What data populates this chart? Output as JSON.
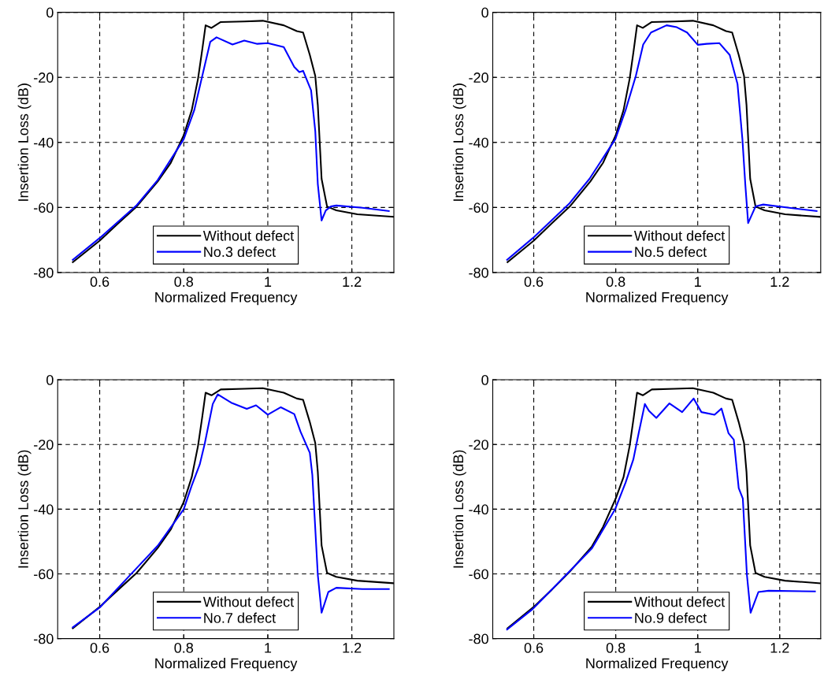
{
  "chart_data": [
    {
      "type": "line",
      "xlabel": "Normalized Frequency",
      "ylabel": "Insertion Loss (dB)",
      "xlim": [
        0.5,
        1.3
      ],
      "ylim": [
        -80,
        0
      ],
      "xticks": [
        0.6,
        0.8,
        1,
        1.2
      ],
      "yticks": [
        -80,
        -60,
        -40,
        -20,
        0
      ],
      "grid": true,
      "legend": "bottom",
      "series": [
        {
          "name": "Without defect",
          "color": "#000000",
          "x": [
            0.536,
            0.6,
            0.644,
            0.688,
            0.738,
            0.769,
            0.8,
            0.819,
            0.834,
            0.844,
            0.852,
            0.866,
            0.888,
            0.944,
            0.988,
            1.038,
            1.069,
            1.084,
            1.1,
            1.113,
            1.119,
            1.128,
            1.141,
            1.163,
            1.213,
            1.3
          ],
          "values": [
            -76.8,
            -70.2,
            -64.9,
            -59.7,
            -52,
            -46.3,
            -37.8,
            -30.1,
            -20.4,
            -11.5,
            -4,
            -4.8,
            -3,
            -2.8,
            -2.6,
            -4,
            -5.8,
            -6.2,
            -13.1,
            -19.6,
            -28.5,
            -51.2,
            -59.7,
            -60.9,
            -62.1,
            -62.9
          ]
        },
        {
          "name": "No.3 defect",
          "color": "#0000ff",
          "x": [
            0.536,
            0.6,
            0.688,
            0.738,
            0.8,
            0.825,
            0.844,
            0.863,
            0.878,
            0.916,
            0.944,
            0.975,
            1.0,
            1.038,
            1.063,
            1.075,
            1.084,
            1.103,
            1.113,
            1.119,
            1.128,
            1.138,
            1.15,
            1.163,
            1.225,
            1.288
          ],
          "values": [
            -76.1,
            -69.4,
            -59.3,
            -51.6,
            -39,
            -30.1,
            -19.6,
            -9.1,
            -7.7,
            -9.9,
            -8.7,
            -9.7,
            -9.5,
            -10.7,
            -16.8,
            -18.4,
            -18,
            -24,
            -36.6,
            -52.8,
            -64,
            -60.9,
            -59.7,
            -59.4,
            -60.1,
            -61.1
          ]
        }
      ]
    },
    {
      "type": "line",
      "xlabel": "Normalized Frequency",
      "ylabel": "Insertion Loss (dB)",
      "xlim": [
        0.5,
        1.3
      ],
      "ylim": [
        -80,
        0
      ],
      "xticks": [
        0.6,
        0.8,
        1,
        1.2
      ],
      "yticks": [
        -80,
        -60,
        -40,
        -20,
        0
      ],
      "grid": true,
      "legend": "bottom",
      "series": [
        {
          "name": "Without defect",
          "color": "#000000",
          "x": [
            0.536,
            0.6,
            0.644,
            0.688,
            0.738,
            0.769,
            0.8,
            0.819,
            0.834,
            0.844,
            0.852,
            0.866,
            0.888,
            0.944,
            0.988,
            1.038,
            1.069,
            1.084,
            1.1,
            1.113,
            1.119,
            1.128,
            1.141,
            1.163,
            1.213,
            1.3
          ],
          "values": [
            -76.8,
            -70.2,
            -64.9,
            -59.7,
            -52,
            -46.3,
            -37.8,
            -30.1,
            -20.4,
            -11.5,
            -4,
            -4.8,
            -3,
            -2.8,
            -2.6,
            -4,
            -5.8,
            -6.2,
            -13.1,
            -19.6,
            -28.5,
            -51.2,
            -59.7,
            -60.9,
            -62.1,
            -62.9
          ]
        },
        {
          "name": "No.5 defect",
          "color": "#0000ff",
          "x": [
            0.535,
            0.598,
            0.686,
            0.736,
            0.799,
            0.824,
            0.849,
            0.867,
            0.886,
            0.924,
            0.949,
            0.974,
            1.0,
            1.022,
            1.053,
            1.078,
            1.097,
            1.109,
            1.116,
            1.123,
            1.141,
            1.16,
            1.223,
            1.29
          ],
          "values": [
            -76.1,
            -69.4,
            -58.9,
            -51.2,
            -39,
            -30.1,
            -19.6,
            -9.9,
            -6.2,
            -4,
            -4.6,
            -6.2,
            -10,
            -9.7,
            -9.5,
            -13.1,
            -22,
            -39,
            -52.8,
            -64.8,
            -59.7,
            -59.1,
            -60.1,
            -61.1
          ]
        }
      ]
    },
    {
      "type": "line",
      "xlabel": "Normalized Frequency",
      "ylabel": "Insertion Loss (dB)",
      "xlim": [
        0.5,
        1.3
      ],
      "ylim": [
        -80,
        0
      ],
      "xticks": [
        0.6,
        0.8,
        1,
        1.2
      ],
      "yticks": [
        -80,
        -60,
        -40,
        -20,
        0
      ],
      "grid": true,
      "legend": "bottom",
      "series": [
        {
          "name": "Without defect",
          "color": "#000000",
          "x": [
            0.536,
            0.6,
            0.644,
            0.688,
            0.738,
            0.769,
            0.8,
            0.819,
            0.834,
            0.844,
            0.852,
            0.866,
            0.888,
            0.944,
            0.988,
            1.038,
            1.069,
            1.084,
            1.1,
            1.113,
            1.119,
            1.128,
            1.141,
            1.163,
            1.213,
            1.3
          ],
          "values": [
            -76.8,
            -70.2,
            -64.9,
            -59.7,
            -52,
            -46.3,
            -37.8,
            -30.1,
            -20.4,
            -11.5,
            -4,
            -4.8,
            -3,
            -2.8,
            -2.6,
            -4,
            -5.8,
            -6.2,
            -13.1,
            -19.6,
            -28.5,
            -51.2,
            -59.7,
            -60.9,
            -62.1,
            -62.9
          ]
        },
        {
          "name": "No.7 defect",
          "color": "#0000ff",
          "x": [
            0.536,
            0.6,
            0.688,
            0.738,
            0.8,
            0.819,
            0.838,
            0.85,
            0.869,
            0.881,
            0.913,
            0.95,
            0.972,
            1.0,
            1.031,
            1.063,
            1.078,
            1.1,
            1.106,
            1.119,
            1.128,
            1.144,
            1.163,
            1.225,
            1.288
          ],
          "values": [
            -76.5,
            -70.4,
            -58.2,
            -51.3,
            -40,
            -32.7,
            -26.2,
            -19.7,
            -7.5,
            -4.5,
            -7.1,
            -9,
            -7.9,
            -10.8,
            -8.5,
            -10.6,
            -16.1,
            -22.6,
            -29.5,
            -60.3,
            -72,
            -65.6,
            -64.3,
            -64.7,
            -64.7
          ]
        }
      ]
    },
    {
      "type": "line",
      "xlabel": "Normalized Frequency",
      "ylabel": "Insertion Loss (dB)",
      "xlim": [
        0.5,
        1.3
      ],
      "ylim": [
        -80,
        0
      ],
      "xticks": [
        0.6,
        0.8,
        1,
        1.2
      ],
      "yticks": [
        -80,
        -60,
        -40,
        -20,
        0
      ],
      "grid": true,
      "legend": "bottom",
      "series": [
        {
          "name": "Without defect",
          "color": "#000000",
          "x": [
            0.536,
            0.6,
            0.644,
            0.688,
            0.742,
            0.769,
            0.8,
            0.819,
            0.834,
            0.844,
            0.852,
            0.866,
            0.888,
            0.944,
            0.988,
            1.038,
            1.069,
            1.084,
            1.1,
            1.113,
            1.119,
            1.128,
            1.141,
            1.163,
            1.213,
            1.3
          ],
          "values": [
            -76.8,
            -70.2,
            -64.9,
            -59.3,
            -51.5,
            -45.5,
            -36.7,
            -30.1,
            -20.4,
            -11.5,
            -4,
            -4.8,
            -3,
            -2.8,
            -2.6,
            -4,
            -5.8,
            -6.2,
            -13.1,
            -19.6,
            -28.5,
            -51.2,
            -59.7,
            -60.9,
            -62.1,
            -62.9
          ]
        },
        {
          "name": "No.9 defect",
          "color": "#0000ff",
          "x": [
            0.535,
            0.598,
            0.692,
            0.742,
            0.799,
            0.824,
            0.843,
            0.856,
            0.871,
            0.881,
            0.899,
            0.931,
            0.962,
            0.99,
            1.009,
            1.041,
            1.058,
            1.075,
            1.088,
            1.1,
            1.11,
            1.12,
            1.129,
            1.148,
            1.173,
            1.286
          ],
          "values": [
            -77.2,
            -70.8,
            -58.6,
            -52.1,
            -39.9,
            -31.8,
            -24.6,
            -16.5,
            -7.5,
            -9.6,
            -11.8,
            -7.3,
            -10,
            -5.8,
            -10,
            -10.8,
            -8.9,
            -16.5,
            -18.5,
            -33.5,
            -36.7,
            -60.3,
            -72,
            -65.6,
            -65.2,
            -65.4
          ]
        }
      ]
    }
  ]
}
